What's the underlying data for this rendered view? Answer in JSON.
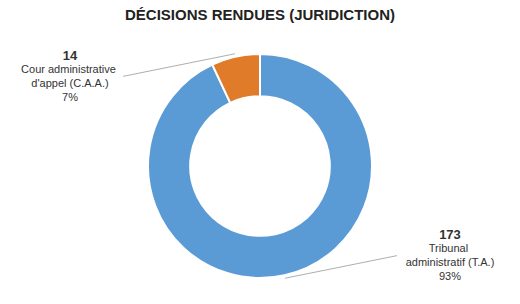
{
  "chart_data": {
    "type": "donut",
    "title": "DÉCISIONS RENDUES (JURIDICTION)",
    "categories": [
      "Tribunal administratif (T.A.)",
      "Cour administrative d'appel (C.A.A.)"
    ],
    "values": [
      93,
      7
    ],
    "value_labels": [
      "93%",
      "7%"
    ],
    "counts": [
      173,
      14
    ],
    "colors": [
      "#5b9bd5",
      "#e07b2a"
    ],
    "data_labels": true
  }
}
